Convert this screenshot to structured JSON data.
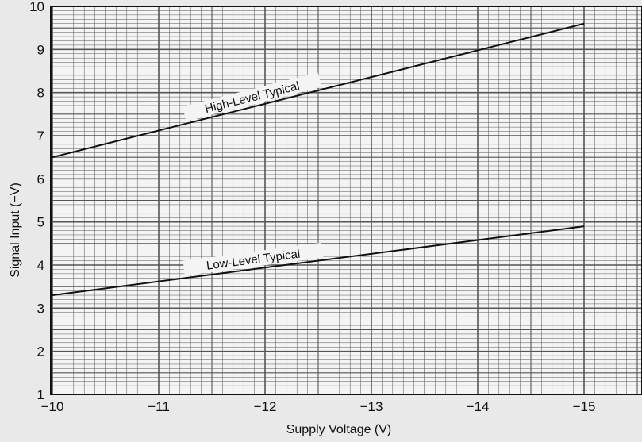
{
  "chart_data": {
    "type": "line",
    "xlabel": "Supply Voltage (V)",
    "ylabel": "Signal Input (−V)",
    "x_ticks": [
      {
        "value": -10,
        "label": "−10"
      },
      {
        "value": -11,
        "label": "−11"
      },
      {
        "value": -12,
        "label": "−12"
      },
      {
        "value": -13,
        "label": "−13"
      },
      {
        "value": -14,
        "label": "−14"
      },
      {
        "value": -15,
        "label": "−15"
      }
    ],
    "y_ticks": [
      {
        "value": 1,
        "label": "1"
      },
      {
        "value": 2,
        "label": "2"
      },
      {
        "value": 3,
        "label": "3"
      },
      {
        "value": 4,
        "label": "4"
      },
      {
        "value": 5,
        "label": "5"
      },
      {
        "value": 6,
        "label": "6"
      },
      {
        "value": 7,
        "label": "7"
      },
      {
        "value": 8,
        "label": "8"
      },
      {
        "value": 9,
        "label": "9"
      },
      {
        "value": 10,
        "label": "10"
      }
    ],
    "xlim": [
      -10,
      -15.5
    ],
    "ylim": [
      1,
      10
    ],
    "grid": true,
    "series": [
      {
        "name": "High-Level Typical",
        "x": [
          -10,
          -15
        ],
        "y": [
          6.5,
          9.6
        ]
      },
      {
        "name": "Low-Level Typical",
        "x": [
          -10,
          -15
        ],
        "y": [
          3.3,
          4.9
        ]
      }
    ],
    "colors": {
      "line": "#111111",
      "grid": "#555555",
      "background": "#e9e9e9"
    }
  }
}
